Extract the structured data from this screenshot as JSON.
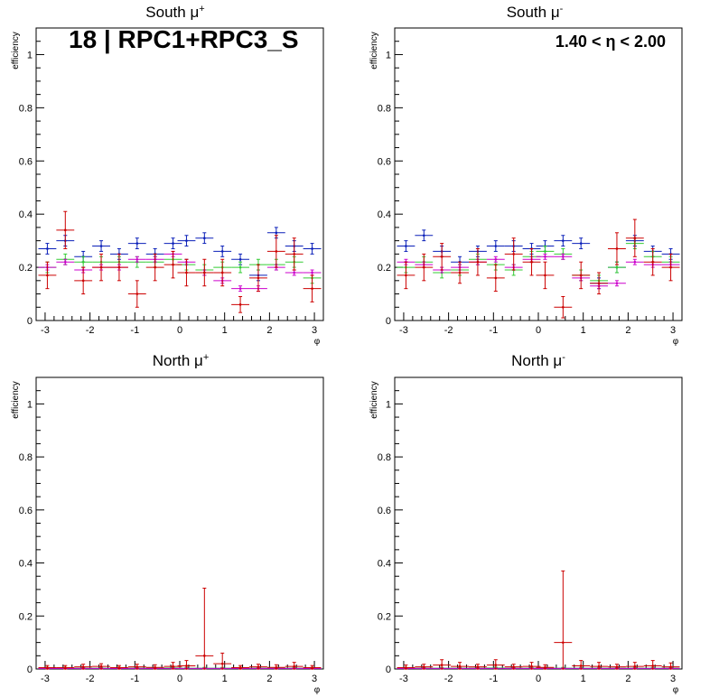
{
  "overlay": {
    "run_label": "18 | RPC1+RPC3_S",
    "eta_range": "1.40 < η < 2.00"
  },
  "colors": {
    "blue": "#0a1fb8",
    "green": "#33cc33",
    "red": "#cc0000",
    "magenta": "#cc00cc",
    "black": "#000000"
  },
  "chart_data": [
    {
      "type": "scatter",
      "panel": "south-mu-plus",
      "title_base": "South μ",
      "title_sup": "+",
      "xlabel": "φ",
      "ylabel": "efficiency",
      "xlim": [
        -3.2,
        3.2
      ],
      "ylim": [
        0,
        1.1
      ],
      "xticks": [
        "-3",
        "-2",
        "-1",
        "0",
        "1",
        "2",
        "3"
      ],
      "yticks": [
        "0",
        "0.2",
        "0.4",
        "0.6",
        "0.8",
        "1"
      ],
      "x": [
        -2.95,
        -2.55,
        -2.15,
        -1.75,
        -1.35,
        -0.95,
        -0.55,
        -0.15,
        0.15,
        0.55,
        0.95,
        1.35,
        1.75,
        2.15,
        2.55,
        2.95
      ],
      "series": [
        {
          "name": "blue",
          "color": "#0a1fb8",
          "values": [
            0.27,
            0.3,
            0.24,
            0.28,
            0.25,
            0.29,
            0.25,
            0.29,
            0.3,
            0.31,
            0.26,
            0.23,
            0.17,
            0.33,
            0.28,
            0.27
          ],
          "errors": [
            0.02,
            0.02,
            0.02,
            0.02,
            0.02,
            0.02,
            0.02,
            0.02,
            0.02,
            0.02,
            0.02,
            0.02,
            0.02,
            0.02,
            0.02,
            0.02
          ]
        },
        {
          "name": "green",
          "color": "#33cc33",
          "values": [
            0.2,
            0.23,
            0.22,
            0.22,
            0.22,
            0.22,
            0.22,
            0.23,
            0.21,
            0.19,
            0.2,
            0.2,
            0.21,
            0.21,
            0.22,
            0.16
          ],
          "errors": [
            0.02,
            0.02,
            0.02,
            0.02,
            0.02,
            0.02,
            0.02,
            0.02,
            0.02,
            0.02,
            0.02,
            0.02,
            0.02,
            0.02,
            0.02,
            0.02
          ]
        },
        {
          "name": "magenta",
          "color": "#cc00cc",
          "values": [
            0.2,
            0.22,
            0.19,
            0.2,
            0.2,
            0.23,
            0.23,
            0.25,
            0.22,
            0.18,
            0.15,
            0.12,
            0.12,
            0.2,
            0.18,
            0.18
          ],
          "errors": [
            0.01,
            0.01,
            0.01,
            0.01,
            0.01,
            0.01,
            0.01,
            0.01,
            0.01,
            0.01,
            0.01,
            0.01,
            0.01,
            0.01,
            0.01,
            0.01
          ]
        },
        {
          "name": "red",
          "color": "#cc0000",
          "values": [
            0.17,
            0.34,
            0.15,
            0.2,
            0.2,
            0.1,
            0.2,
            0.21,
            0.18,
            0.18,
            0.18,
            0.06,
            0.16,
            0.26,
            0.25,
            0.12
          ],
          "errors": [
            0.05,
            0.07,
            0.05,
            0.05,
            0.05,
            0.05,
            0.05,
            0.05,
            0.05,
            0.05,
            0.05,
            0.03,
            0.05,
            0.06,
            0.06,
            0.05
          ]
        }
      ]
    },
    {
      "type": "scatter",
      "panel": "south-mu-minus",
      "title_base": "South μ",
      "title_sup": "-",
      "xlabel": "φ",
      "ylabel": "efficiency",
      "xlim": [
        -3.2,
        3.2
      ],
      "ylim": [
        0,
        1.1
      ],
      "xticks": [
        "-3",
        "-2",
        "-1",
        "0",
        "1",
        "2",
        "3"
      ],
      "yticks": [
        "0",
        "0.2",
        "0.4",
        "0.6",
        "0.8",
        "1"
      ],
      "x": [
        -2.95,
        -2.55,
        -2.15,
        -1.75,
        -1.35,
        -0.95,
        -0.55,
        -0.15,
        0.15,
        0.55,
        0.95,
        1.35,
        1.75,
        2.15,
        2.55,
        2.95
      ],
      "series": [
        {
          "name": "blue",
          "color": "#0a1fb8",
          "values": [
            0.28,
            0.32,
            0.26,
            0.22,
            0.26,
            0.28,
            0.28,
            0.27,
            0.28,
            0.3,
            0.29,
            0.14,
            0.2,
            0.3,
            0.26,
            0.25
          ],
          "errors": [
            0.02,
            0.02,
            0.02,
            0.02,
            0.02,
            0.02,
            0.02,
            0.02,
            0.02,
            0.02,
            0.02,
            0.02,
            0.02,
            0.02,
            0.02,
            0.02
          ]
        },
        {
          "name": "green",
          "color": "#33cc33",
          "values": [
            0.2,
            0.22,
            0.18,
            0.19,
            0.23,
            0.21,
            0.19,
            0.24,
            0.26,
            0.25,
            0.17,
            0.15,
            0.2,
            0.29,
            0.24,
            0.22
          ],
          "errors": [
            0.02,
            0.02,
            0.02,
            0.02,
            0.02,
            0.02,
            0.02,
            0.02,
            0.02,
            0.02,
            0.02,
            0.02,
            0.02,
            0.02,
            0.02,
            0.02
          ]
        },
        {
          "name": "magenta",
          "color": "#cc00cc",
          "values": [
            0.22,
            0.21,
            0.19,
            0.2,
            0.22,
            0.23,
            0.2,
            0.23,
            0.24,
            0.24,
            0.16,
            0.13,
            0.14,
            0.22,
            0.21,
            0.21
          ],
          "errors": [
            0.01,
            0.01,
            0.01,
            0.01,
            0.01,
            0.01,
            0.01,
            0.01,
            0.01,
            0.01,
            0.01,
            0.01,
            0.01,
            0.01,
            0.01,
            0.01
          ]
        },
        {
          "name": "red",
          "color": "#cc0000",
          "values": [
            0.17,
            0.2,
            0.24,
            0.18,
            0.22,
            0.16,
            0.25,
            0.22,
            0.17,
            0.05,
            0.17,
            0.14,
            0.27,
            0.31,
            0.22,
            0.2
          ],
          "errors": [
            0.05,
            0.05,
            0.05,
            0.04,
            0.05,
            0.05,
            0.06,
            0.05,
            0.05,
            0.04,
            0.05,
            0.04,
            0.06,
            0.07,
            0.05,
            0.05
          ]
        }
      ]
    },
    {
      "type": "scatter",
      "panel": "north-mu-plus",
      "title_base": "North μ",
      "title_sup": "+",
      "xlabel": "φ",
      "ylabel": "efficiency",
      "xlim": [
        -3.2,
        3.2
      ],
      "ylim": [
        0,
        1.1
      ],
      "xticks": [
        "-3",
        "-2",
        "-1",
        "0",
        "1",
        "2",
        "3"
      ],
      "yticks": [
        "0",
        "0.2",
        "0.4",
        "0.6",
        "0.8",
        "1"
      ],
      "x": [
        -2.95,
        -2.55,
        -2.15,
        -1.75,
        -1.35,
        -0.95,
        -0.55,
        -0.15,
        0.15,
        0.55,
        0.95,
        1.35,
        1.75,
        2.15,
        2.55,
        2.95
      ],
      "series": [
        {
          "name": "blue",
          "color": "#0a1fb8",
          "values": [
            0.002,
            0.002,
            0.002,
            0.002,
            0.002,
            0.002,
            0.002,
            0.003,
            0.002,
            0.002,
            0.002,
            0.002,
            0.002,
            0.002,
            0.002,
            0.002
          ],
          "errors": [
            0.002,
            0.002,
            0.002,
            0.002,
            0.002,
            0.002,
            0.002,
            0.002,
            0.002,
            0.002,
            0.002,
            0.002,
            0.002,
            0.002,
            0.002,
            0.002
          ]
        },
        {
          "name": "green",
          "color": "#33cc33",
          "values": [
            0.003,
            0.003,
            0.003,
            0.003,
            0.003,
            0.003,
            0.003,
            0.004,
            0.003,
            0.003,
            0.003,
            0.003,
            0.003,
            0.003,
            0.003,
            0.003
          ],
          "errors": [
            0.003,
            0.003,
            0.003,
            0.003,
            0.003,
            0.003,
            0.003,
            0.003,
            0.003,
            0.003,
            0.003,
            0.003,
            0.003,
            0.003,
            0.003,
            0.003
          ]
        },
        {
          "name": "magenta",
          "color": "#cc00cc",
          "values": [
            0.002,
            0.002,
            0.002,
            0.002,
            0.002,
            0.002,
            0.002,
            0.002,
            0.002,
            0.002,
            0.002,
            0.002,
            0.002,
            0.002,
            0.002,
            0.002
          ],
          "errors": [
            0.001,
            0.001,
            0.001,
            0.001,
            0.001,
            0.001,
            0.001,
            0.001,
            0.001,
            0.001,
            0.001,
            0.001,
            0.001,
            0.001,
            0.001,
            0.001
          ]
        },
        {
          "name": "red",
          "color": "#cc0000",
          "values": [
            0.005,
            0.005,
            0.008,
            0.01,
            0.005,
            0.008,
            0.006,
            0.01,
            0.012,
            0.05,
            0.02,
            0.005,
            0.008,
            0.006,
            0.01,
            0.005
          ],
          "errors": [
            0.008,
            0.008,
            0.01,
            0.01,
            0.008,
            0.01,
            0.01,
            0.015,
            0.02,
            0.255,
            0.04,
            0.008,
            0.01,
            0.01,
            0.015,
            0.008
          ]
        }
      ]
    },
    {
      "type": "scatter",
      "panel": "north-mu-minus",
      "title_base": "North μ",
      "title_sup": "-",
      "xlabel": "φ",
      "ylabel": "efficiency",
      "xlim": [
        -3.2,
        3.2
      ],
      "ylim": [
        0,
        1.1
      ],
      "xticks": [
        "-3",
        "-2",
        "-1",
        "0",
        "1",
        "2",
        "3"
      ],
      "yticks": [
        "0",
        "0.2",
        "0.4",
        "0.6",
        "0.8",
        "1"
      ],
      "x": [
        -2.95,
        -2.55,
        -2.15,
        -1.75,
        -1.35,
        -0.95,
        -0.55,
        -0.15,
        0.15,
        0.55,
        0.95,
        1.35,
        1.75,
        2.15,
        2.55,
        2.95
      ],
      "series": [
        {
          "name": "blue",
          "color": "#0a1fb8",
          "values": [
            0.002,
            0.002,
            0.002,
            0.002,
            0.002,
            0.003,
            0.002,
            0.002,
            0.002,
            0.002,
            0.002,
            0.002,
            0.002,
            0.002,
            0.002,
            0.002
          ],
          "errors": [
            0.002,
            0.002,
            0.002,
            0.002,
            0.002,
            0.002,
            0.002,
            0.002,
            0.002,
            0.002,
            0.002,
            0.002,
            0.002,
            0.002,
            0.002,
            0.002
          ]
        },
        {
          "name": "green",
          "color": "#33cc33",
          "values": [
            0.003,
            0.003,
            0.003,
            0.003,
            0.003,
            0.004,
            0.003,
            0.003,
            0.003,
            0.003,
            0.003,
            0.003,
            0.003,
            0.003,
            0.003,
            0.003
          ],
          "errors": [
            0.003,
            0.003,
            0.003,
            0.003,
            0.003,
            0.003,
            0.003,
            0.003,
            0.003,
            0.003,
            0.003,
            0.003,
            0.003,
            0.003,
            0.003,
            0.003
          ]
        },
        {
          "name": "magenta",
          "color": "#cc00cc",
          "values": [
            0.002,
            0.002,
            0.002,
            0.002,
            0.002,
            0.002,
            0.002,
            0.002,
            0.002,
            0.002,
            0.002,
            0.002,
            0.002,
            0.002,
            0.002,
            0.002
          ],
          "errors": [
            0.001,
            0.001,
            0.001,
            0.001,
            0.001,
            0.001,
            0.001,
            0.001,
            0.001,
            0.001,
            0.001,
            0.001,
            0.001,
            0.001,
            0.001,
            0.001
          ]
        },
        {
          "name": "red",
          "color": "#cc0000",
          "values": [
            0.005,
            0.008,
            0.015,
            0.01,
            0.008,
            0.015,
            0.008,
            0.01,
            0.006,
            0.1,
            0.012,
            0.01,
            0.008,
            0.01,
            0.012,
            0.008
          ],
          "errors": [
            0.01,
            0.01,
            0.02,
            0.015,
            0.01,
            0.02,
            0.01,
            0.015,
            0.01,
            0.27,
            0.02,
            0.015,
            0.01,
            0.015,
            0.02,
            0.015
          ]
        }
      ]
    }
  ]
}
